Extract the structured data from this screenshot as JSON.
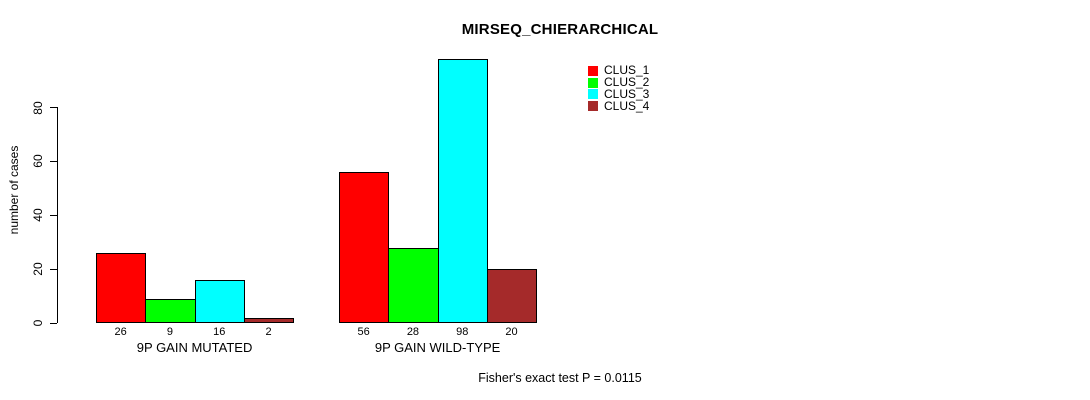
{
  "chart_data": {
    "type": "bar",
    "title": "MIRSEQ_CHIERARCHICAL",
    "ylabel": "number of cases",
    "xlabel": "",
    "categories": [
      "9P GAIN MUTATED",
      "9P GAIN WILD-TYPE"
    ],
    "series": [
      {
        "name": "CLUS_1",
        "color": "#FF0000",
        "values": [
          26,
          56
        ]
      },
      {
        "name": "CLUS_2",
        "color": "#00FF00",
        "values": [
          9,
          28
        ]
      },
      {
        "name": "CLUS_3",
        "color": "#00FFFF",
        "values": [
          16,
          98
        ]
      },
      {
        "name": "CLUS_4",
        "color": "#A52A2A",
        "values": [
          2,
          20
        ]
      }
    ],
    "yticks": [
      0,
      20,
      40,
      60,
      80
    ],
    "ylim": [
      0,
      102
    ],
    "grid": false,
    "bar_borders": "#000000",
    "legend_position": "top-right",
    "bar_value_labels_shown": true,
    "annotation": "Fisher's exact test P = 0.0115"
  }
}
